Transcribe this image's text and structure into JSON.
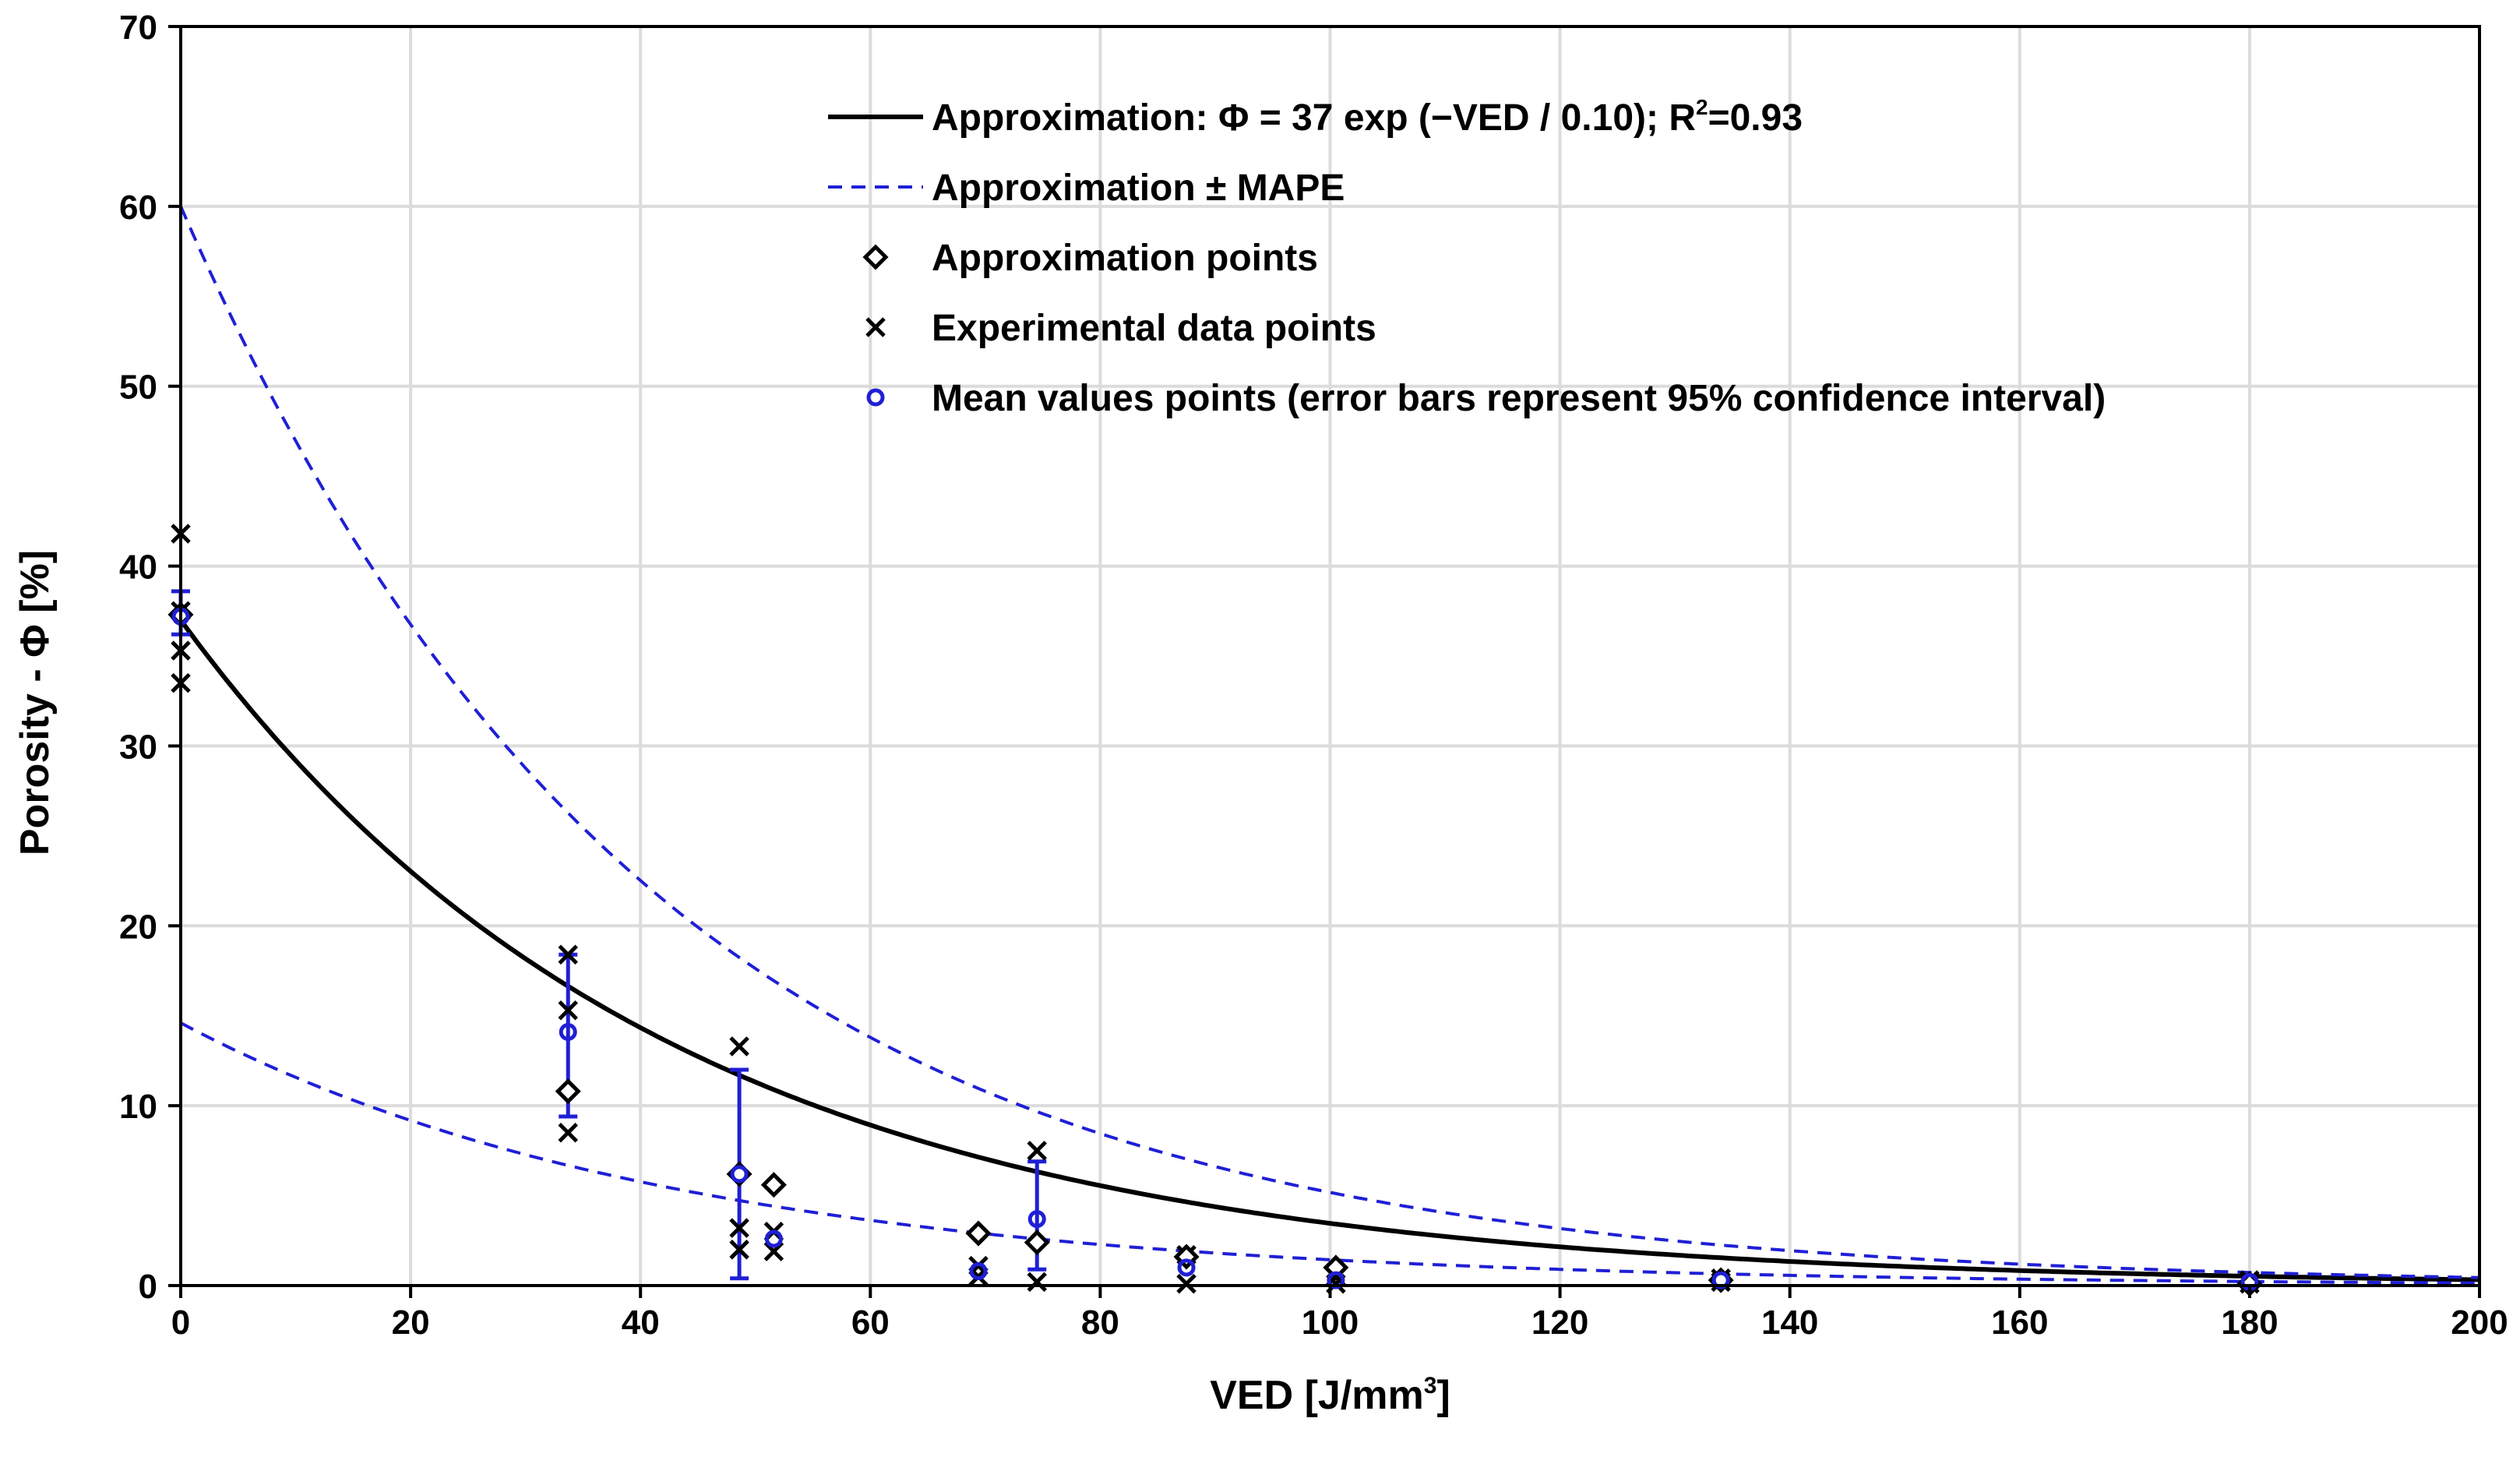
{
  "chart_data": {
    "type": "scatter",
    "xlabel": "VED [J/mm",
    "xlabel_sup": "3",
    "xlabel_close": "]",
    "ylabel": "Porosity - Φ [%]",
    "xlim": [
      0,
      200
    ],
    "ylim": [
      0,
      70
    ],
    "xticks": [
      "0",
      "20",
      "40",
      "60",
      "80",
      "100",
      "120",
      "140",
      "160",
      "180",
      "200"
    ],
    "yticks": [
      "0",
      "10",
      "20",
      "30",
      "40",
      "50",
      "60",
      "70"
    ],
    "grid": true,
    "legend_position": "top-right",
    "colors": {
      "fit": "#000000",
      "mape": "#1f1fd6",
      "mean": "#1f1fd6",
      "grid": "#dcdcdc"
    },
    "legend": {
      "fit_prefix": "Approximation: Φ = 37 exp (−VED / 0.10); R",
      "fit_sup": "2",
      "fit_suffix": "=0.93",
      "mape": "Approximation ± MAPE",
      "approx_points": "Approximation points",
      "experimental": "Experimental data points",
      "mean": "Mean values points (error bars represent 95% confidence interval)"
    },
    "series": [
      {
        "name": "Approximation",
        "style": "solid",
        "function": {
          "a": 37,
          "k": 0.0237
        }
      },
      {
        "name": "Approximation + MAPE",
        "style": "dashed",
        "function": {
          "a": 60,
          "k": 0.0245
        }
      },
      {
        "name": "Approximation - MAPE",
        "style": "dashed",
        "function": {
          "a": 14.6,
          "k": 0.0232
        }
      },
      {
        "name": "Approximation points",
        "marker": "diamond",
        "points": [
          [
            0,
            37.3
          ],
          [
            33.7,
            10.8
          ],
          [
            48.6,
            6.2
          ],
          [
            51.6,
            5.6
          ],
          [
            69.4,
            2.9
          ],
          [
            74.5,
            2.4
          ],
          [
            87.5,
            1.6
          ],
          [
            100.5,
            1.0
          ],
          [
            134,
            0.3
          ],
          [
            180,
            0.1
          ]
        ]
      },
      {
        "name": "Experimental data points",
        "marker": "x",
        "points": [
          [
            0,
            41.8
          ],
          [
            0,
            37.5
          ],
          [
            0,
            35.3
          ],
          [
            0,
            33.5
          ],
          [
            33.7,
            18.4
          ],
          [
            33.7,
            15.3
          ],
          [
            33.7,
            8.5
          ],
          [
            48.6,
            13.3
          ],
          [
            48.6,
            3.2
          ],
          [
            48.6,
            2.0
          ],
          [
            51.6,
            3.0
          ],
          [
            51.6,
            1.9
          ],
          [
            69.4,
            1.1
          ],
          [
            69.4,
            0.5
          ],
          [
            74.5,
            7.5
          ],
          [
            74.5,
            0.2
          ],
          [
            87.5,
            1.7
          ],
          [
            87.5,
            0.1
          ],
          [
            100.5,
            0.5
          ],
          [
            100.5,
            0.1
          ],
          [
            134,
            0.4
          ],
          [
            134,
            0.2
          ],
          [
            180,
            0.3
          ],
          [
            180,
            0.1
          ]
        ]
      },
      {
        "name": "Mean values points",
        "marker": "circle",
        "points": [
          [
            0,
            37.2
          ],
          [
            33.7,
            14.1
          ],
          [
            48.6,
            6.2
          ],
          [
            51.6,
            2.6
          ],
          [
            69.4,
            0.8
          ],
          [
            74.5,
            3.7
          ],
          [
            87.5,
            1.0
          ],
          [
            100.5,
            0.3
          ],
          [
            134,
            0.3
          ],
          [
            180,
            0.2
          ]
        ],
        "error_bars": [
          [
            0,
            38.6,
            36.2
          ],
          [
            33.7,
            18.4,
            9.4
          ],
          [
            48.6,
            12.0,
            0.4
          ],
          [
            74.5,
            6.9,
            0.9
          ]
        ]
      }
    ]
  }
}
